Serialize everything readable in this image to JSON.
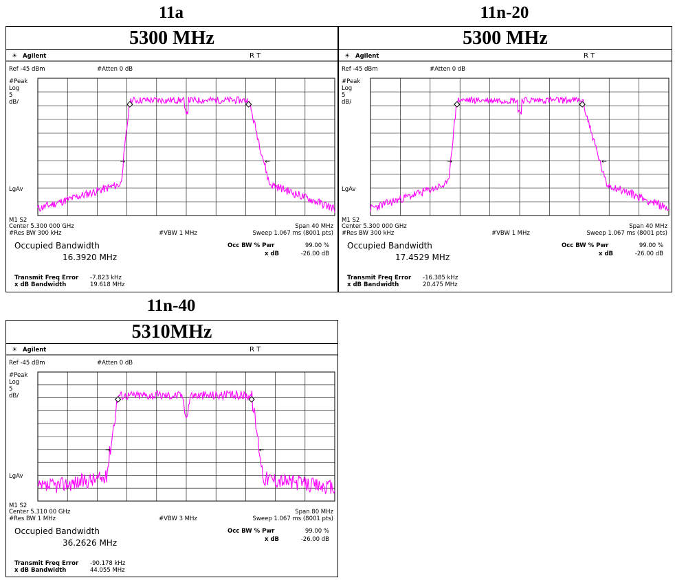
{
  "panels": [
    {
      "id": "p1",
      "mode": "11a",
      "freq_label": "5300 MHz",
      "brand": "Agilent",
      "rt": "R  T",
      "ref": "Ref -45 dBm",
      "atten": "#Atten 0 dB",
      "peak": "#Peak",
      "log": "Log",
      "scale_num": "5",
      "scale_unit": "dB/",
      "lgav": "LgAv",
      "m1s2": "M1 S2",
      "center": "Center 5.300 000 GHz",
      "span": "Span 40 MHz",
      "rbw": "#Res BW 300 kHz",
      "vbw": "#VBW 1 MHz",
      "sweep": "Sweep 1.067 ms (8001 pts)",
      "occ_label": "Occupied Bandwidth",
      "occ_value": "16.3920 MHz",
      "occ_pct_label": "Occ BW % Pwr",
      "occ_pct_value": "99.00 %",
      "xdb_label": "x dB",
      "xdb_value": "-26.00 dB",
      "tfe_label": "Transmit Freq Error",
      "tfe_value": "-7.823 kHz",
      "xbw_label": "x dB Bandwidth",
      "xbw_value": "19.618 MHz",
      "trace_color": "#ff00ff"
    },
    {
      "id": "p2",
      "mode": "11n-20",
      "freq_label": "5300 MHz",
      "brand": "Agilent",
      "rt": "R  T",
      "ref": "Ref -45 dBm",
      "atten": "#Atten 0 dB",
      "peak": "#Peak",
      "log": "Log",
      "scale_num": "5",
      "scale_unit": "dB/",
      "lgav": "LgAv",
      "m1s2": "M1 S2",
      "center": "Center 5.300 000 GHz",
      "span": "Span 40 MHz",
      "rbw": "#Res BW 300 kHz",
      "vbw": "#VBW 1 MHz",
      "sweep": "Sweep 1.067 ms (8001 pts)",
      "occ_label": "Occupied Bandwidth",
      "occ_value": "17.4529 MHz",
      "occ_pct_label": "Occ BW % Pwr",
      "occ_pct_value": "99.00 %",
      "xdb_label": "x dB",
      "xdb_value": "-26.00 dB",
      "tfe_label": "Transmit Freq Error",
      "tfe_value": "-16.385 kHz",
      "xbw_label": "x dB Bandwidth",
      "xbw_value": "20.475 MHz",
      "trace_color": "#ff00ff"
    },
    {
      "id": "p3",
      "mode": "11n-40",
      "freq_label": "5310MHz",
      "brand": "Agilent",
      "rt": "R  T",
      "ref": "Ref -45 dBm",
      "atten": "#Atten 0 dB",
      "peak": "#Peak",
      "log": "Log",
      "scale_num": "5",
      "scale_unit": "dB/",
      "lgav": "LgAv",
      "m1s2": "M1 S2",
      "center": "Center 5.310 00 GHz",
      "span": "Span 80 MHz",
      "rbw": "#Res BW 1 MHz",
      "vbw": "#VBW 3 MHz",
      "sweep": "Sweep 1.067 ms (8001 pts)",
      "occ_label": "Occupied Bandwidth",
      "occ_value": "36.2626 MHz",
      "occ_pct_label": "Occ BW % Pwr",
      "occ_pct_value": "99.00 %",
      "xdb_label": "x dB",
      "xdb_value": "-26.00 dB",
      "tfe_label": "Transmit Freq Error",
      "tfe_value": "-90.178 kHz",
      "xbw_label": "x dB Bandwidth",
      "xbw_value": "44.055 MHz",
      "trace_color": "#ff00ff"
    }
  ]
}
